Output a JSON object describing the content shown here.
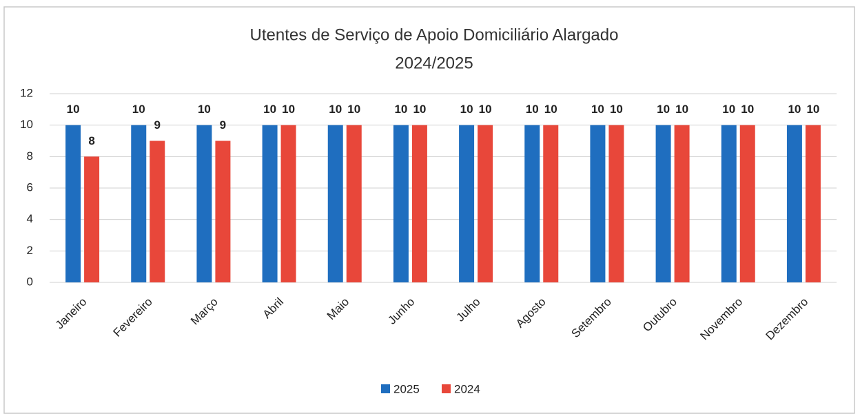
{
  "chart_data": {
    "type": "bar",
    "title": [
      "Utentes de Serviço de Apoio Domiciliário Alargado",
      "2024/2025"
    ],
    "categories": [
      "Janeiro",
      "Fevereiro",
      "Março",
      "Abril",
      "Maio",
      "Junho",
      "Julho",
      "Agosto",
      "Setembro",
      "Outubro",
      "Novembro",
      "Dezembro"
    ],
    "series": [
      {
        "name": "2025",
        "color": "#1f6ebf",
        "values": [
          10,
          10,
          10,
          10,
          10,
          10,
          10,
          10,
          10,
          10,
          10,
          10
        ]
      },
      {
        "name": "2024",
        "color": "#e8473a",
        "values": [
          8,
          9,
          9,
          10,
          10,
          10,
          10,
          10,
          10,
          10,
          10,
          10
        ]
      }
    ],
    "ylim": [
      0,
      12
    ],
    "yticks": [
      0,
      2,
      4,
      6,
      8,
      10,
      12
    ],
    "grid": true,
    "legend": "bottom"
  }
}
